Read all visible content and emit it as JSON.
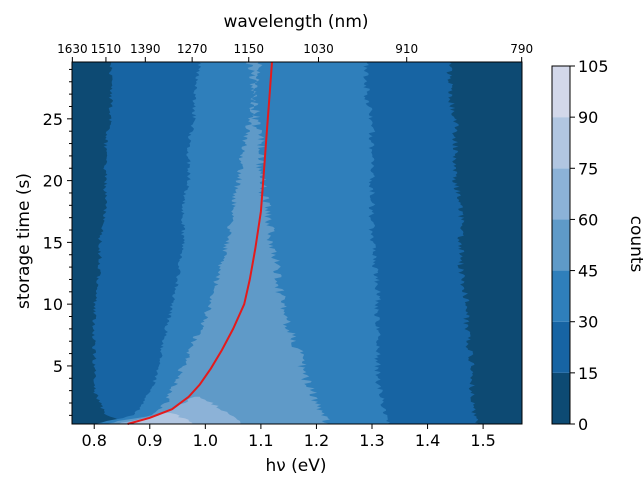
{
  "chart_data": {
    "type": "heatmap",
    "title": "",
    "xlabel": "hν (eV)",
    "x_top_label": "wavelength (nm)",
    "ylabel": "storage time (s)",
    "colorbar_label": "counts",
    "xlim": [
      0.76,
      1.57
    ],
    "ylim": [
      0.3,
      29.6
    ],
    "x_ticks": [
      0.8,
      0.9,
      1.0,
      1.1,
      1.2,
      1.3,
      1.4,
      1.5
    ],
    "x_tick_labels": [
      "0.8",
      "0.9",
      "1.0",
      "1.1",
      "1.2",
      "1.3",
      "1.4",
      "1.5"
    ],
    "y_ticks": [
      5,
      10,
      15,
      20,
      25
    ],
    "y_tick_labels": [
      "5",
      "10",
      "15",
      "20",
      "25"
    ],
    "top_ticks_nm": [
      1630,
      1510,
      1390,
      1270,
      1150,
      1030,
      910,
      790
    ],
    "top_tick_labels": [
      "1630",
      "1510",
      "1390",
      "1270",
      "1150",
      "1030",
      "910",
      "790"
    ],
    "colorbar_levels": [
      0,
      15,
      30,
      45,
      60,
      75,
      90,
      105
    ],
    "colorbar_tick_labels": [
      "0",
      "15",
      "30",
      "45",
      "60",
      "75",
      "90",
      "105"
    ],
    "level_colors": [
      "#0d4a73",
      "#1764a3",
      "#2f7fbb",
      "#5f9ac8",
      "#8cb2d7",
      "#b1c6e1",
      "#d3d8ea"
    ],
    "contour_bands": [
      {
        "level": 1,
        "left": [
          [
            0.3,
            0.87
          ],
          [
            1,
            0.82
          ],
          [
            2,
            0.81
          ],
          [
            3,
            0.8
          ],
          [
            5,
            0.8
          ],
          [
            8,
            0.8
          ],
          [
            10,
            0.8
          ],
          [
            13,
            0.81
          ],
          [
            15,
            0.81
          ],
          [
            18,
            0.82
          ],
          [
            20,
            0.82
          ],
          [
            23,
            0.82
          ],
          [
            25,
            0.83
          ],
          [
            27,
            0.83
          ],
          [
            29.6,
            0.83
          ]
        ],
        "right": [
          [
            0.3,
            1.49
          ],
          [
            2,
            1.48
          ],
          [
            5,
            1.48
          ],
          [
            8,
            1.47
          ],
          [
            10,
            1.47
          ],
          [
            13,
            1.46
          ],
          [
            15,
            1.46
          ],
          [
            18,
            1.46
          ],
          [
            20,
            1.45
          ],
          [
            23,
            1.45
          ],
          [
            25,
            1.45
          ],
          [
            27,
            1.44
          ],
          [
            29.6,
            1.44
          ]
        ]
      },
      {
        "level": 2,
        "left": [
          [
            0.3,
            0.8
          ],
          [
            1,
            0.87
          ],
          [
            2,
            0.89
          ],
          [
            4,
            0.91
          ],
          [
            6,
            0.92
          ],
          [
            8,
            0.93
          ],
          [
            10,
            0.94
          ],
          [
            12,
            0.95
          ],
          [
            15,
            0.96
          ],
          [
            18,
            0.96
          ],
          [
            20,
            0.97
          ],
          [
            23,
            0.97
          ],
          [
            25,
            0.98
          ],
          [
            27,
            0.98
          ],
          [
            29.6,
            0.99
          ]
        ],
        "right": [
          [
            0.3,
            1.33
          ],
          [
            2,
            1.32
          ],
          [
            4,
            1.31
          ],
          [
            6,
            1.31
          ],
          [
            8,
            1.31
          ],
          [
            10,
            1.31
          ],
          [
            12,
            1.31
          ],
          [
            15,
            1.3
          ],
          [
            18,
            1.3
          ],
          [
            20,
            1.3
          ],
          [
            23,
            1.3
          ],
          [
            25,
            1.3
          ],
          [
            27,
            1.29
          ],
          [
            29.6,
            1.29
          ]
        ]
      },
      {
        "level": 3,
        "left": [
          [
            0.3,
            0.82
          ],
          [
            1,
            0.9
          ],
          [
            2,
            0.93
          ],
          [
            4,
            0.95
          ],
          [
            6,
            0.97
          ],
          [
            8,
            0.99
          ],
          [
            10,
            1.01
          ],
          [
            12,
            1.02
          ],
          [
            15,
            1.04
          ],
          [
            18,
            1.05
          ],
          [
            20,
            1.06
          ],
          [
            23,
            1.07
          ],
          [
            25,
            1.08
          ],
          [
            27,
            1.09
          ],
          [
            29.6,
            1.1
          ]
        ],
        "right": [
          [
            0.3,
            1.22
          ],
          [
            2,
            1.2
          ],
          [
            4,
            1.18
          ],
          [
            6,
            1.17
          ],
          [
            8,
            1.15
          ],
          [
            10,
            1.14
          ],
          [
            12,
            1.13
          ],
          [
            15,
            1.12
          ],
          [
            18,
            1.11
          ],
          [
            20,
            1.1
          ],
          [
            23,
            1.1
          ],
          [
            25,
            1.09
          ],
          [
            27,
            1.09
          ],
          [
            29.6,
            1.08
          ]
        ]
      },
      {
        "level": 4,
        "left": [
          [
            0.3,
            0.84
          ],
          [
            1,
            0.91
          ],
          [
            1.5,
            0.94
          ],
          [
            2,
            0.96
          ],
          [
            2.5,
            0.98
          ]
        ],
        "right": [
          [
            0.3,
            1.06
          ],
          [
            1,
            1.05
          ],
          [
            1.5,
            1.03
          ],
          [
            2,
            1.01
          ],
          [
            2.5,
            0.99
          ]
        ]
      },
      {
        "level": 5,
        "left": [
          [
            0.3,
            0.86
          ],
          [
            0.8,
            0.9
          ],
          [
            1.2,
            0.93
          ]
        ],
        "right": [
          [
            0.3,
            0.98
          ],
          [
            0.8,
            0.96
          ],
          [
            1.2,
            0.94
          ]
        ]
      }
    ],
    "series": [
      {
        "x": [
          0.86,
          0.9,
          0.94,
          0.97,
          0.99,
          1.01,
          1.03,
          1.05,
          1.07,
          1.08,
          1.09,
          1.1,
          1.105,
          1.11,
          1.115,
          1.12
        ],
        "y": [
          0.3,
          0.8,
          1.5,
          2.5,
          3.5,
          4.8,
          6.3,
          8.0,
          10.0,
          12.0,
          14.5,
          17.5,
          20.5,
          23.5,
          26.5,
          29.6
        ],
        "color": "#e41a1c"
      }
    ]
  }
}
